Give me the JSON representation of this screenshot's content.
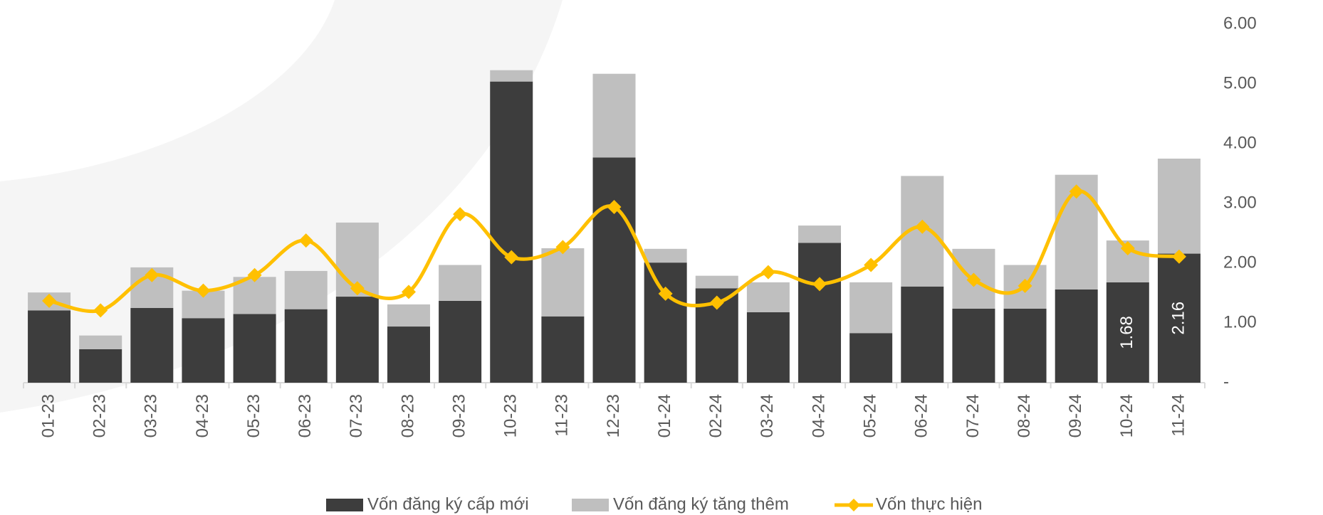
{
  "chart_data": {
    "type": "bar",
    "categories": [
      "01-23",
      "02-23",
      "03-23",
      "04-23",
      "05-23",
      "06-23",
      "07-23",
      "08-23",
      "09-23",
      "10-23",
      "11-23",
      "12-23",
      "01-24",
      "02-24",
      "03-24",
      "04-24",
      "05-24",
      "06-24",
      "07-24",
      "08-24",
      "09-24",
      "10-24",
      "11-24"
    ],
    "series": [
      {
        "name": "Vốn đăng ký cấp mới",
        "color": "#3d3d3d",
        "type": "bar",
        "values": [
          1.21,
          0.56,
          1.25,
          1.08,
          1.15,
          1.23,
          1.44,
          0.94,
          1.37,
          5.04,
          1.11,
          3.77,
          2.01,
          1.58,
          1.18,
          2.34,
          0.83,
          1.61,
          1.24,
          1.24,
          1.56,
          1.68,
          2.16
        ],
        "value_labels": [
          null,
          null,
          null,
          null,
          null,
          null,
          null,
          null,
          null,
          null,
          null,
          null,
          null,
          null,
          null,
          null,
          null,
          null,
          null,
          null,
          null,
          "1.68",
          "2.16"
        ]
      },
      {
        "name": "Vốn đăng ký tăng thêm",
        "color": "#bfbfbf",
        "type": "bar",
        "values": [
          0.3,
          0.23,
          0.68,
          0.46,
          0.62,
          0.64,
          1.24,
          0.37,
          0.6,
          0.19,
          1.14,
          1.4,
          0.23,
          0.21,
          0.5,
          0.29,
          0.85,
          1.85,
          1.0,
          0.73,
          1.92,
          0.7,
          1.59
        ]
      },
      {
        "name": "Vốn thực hiện",
        "color": "#ffc000",
        "type": "line",
        "values": [
          1.37,
          1.21,
          1.8,
          1.54,
          1.8,
          2.38,
          1.58,
          1.52,
          2.82,
          2.1,
          2.27,
          2.94,
          1.49,
          1.34,
          1.85,
          1.65,
          1.97,
          2.61,
          1.72,
          1.62,
          3.2,
          2.25,
          2.11
        ]
      }
    ],
    "stacked": true,
    "ylim": [
      0,
      6
    ],
    "yticks": [
      {
        "value": 0,
        "label": "-"
      },
      {
        "value": 1,
        "label": "1.00"
      },
      {
        "value": 2,
        "label": "2.00"
      },
      {
        "value": 3,
        "label": "3.00"
      },
      {
        "value": 4,
        "label": "4.00"
      },
      {
        "value": 5,
        "label": "5.00"
      },
      {
        "value": 6,
        "label": "6.00"
      }
    ],
    "axis_side": "right",
    "legend": "bottom"
  }
}
